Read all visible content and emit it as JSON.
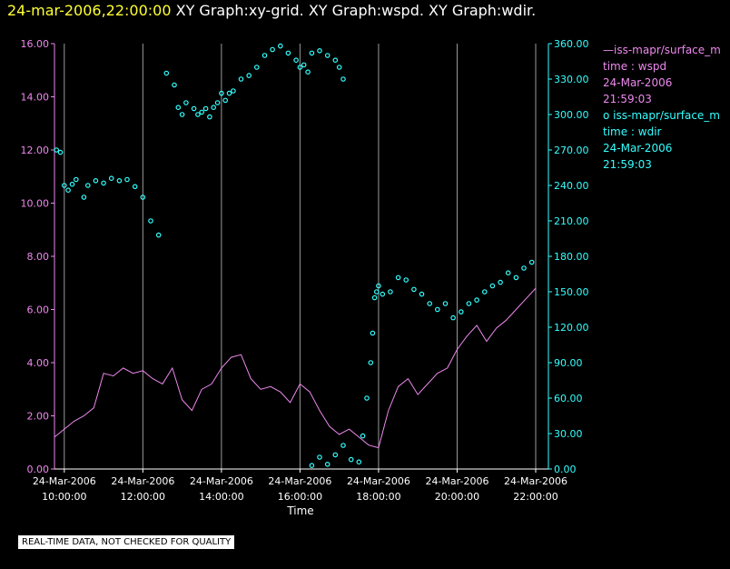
{
  "header": {
    "date_time": "24-mar-2006,22:00:00",
    "graphs": "XY Graph:xy-grid.  XY Graph:wspd.  XY Graph:wdir."
  },
  "legend": {
    "wspd": {
      "series": "iss-mapr/surface_m",
      "var": "time : wspd",
      "date": "24-Mar-2006",
      "time": "21:59:03"
    },
    "wdir": {
      "series": "iss-mapr/surface_m",
      "var": "time : wdir",
      "date": "24-Mar-2006",
      "time": "21:59:03"
    }
  },
  "notice": "REAL-TIME DATA, NOT CHECKED FOR QUALITY",
  "colors": {
    "wspd": "#ee88ee",
    "wdir": "#33ffff",
    "grid": "#9a9a9a",
    "axis": "#ffffff"
  },
  "chart_data": {
    "type": "line",
    "xlabel": "Time",
    "x_range_hours": [
      9.75,
      22.0
    ],
    "x_ticks": [
      {
        "hour": 10,
        "date": "24-Mar-2006",
        "time": "10:00:00"
      },
      {
        "hour": 12,
        "date": "24-Mar-2006",
        "time": "12:00:00"
      },
      {
        "hour": 14,
        "date": "24-Mar-2006",
        "time": "14:00:00"
      },
      {
        "hour": 16,
        "date": "24-Mar-2006",
        "time": "16:00:00"
      },
      {
        "hour": 18,
        "date": "24-Mar-2006",
        "time": "18:00:00"
      },
      {
        "hour": 20,
        "date": "24-Mar-2006",
        "time": "20:00:00"
      },
      {
        "hour": 22,
        "date": "24-Mar-2006",
        "time": "22:00:00"
      }
    ],
    "y_left": {
      "range": [
        0,
        16
      ],
      "ticks": [
        "0.00",
        "2.00",
        "4.00",
        "6.00",
        "8.00",
        "10.00",
        "12.00",
        "14.00",
        "16.00"
      ]
    },
    "y_right": {
      "range": [
        0,
        360
      ],
      "ticks": [
        "0.00",
        "30.00",
        "60.00",
        "90.00",
        "120.00",
        "150.00",
        "180.00",
        "210.00",
        "240.00",
        "270.00",
        "300.00",
        "330.00",
        "360.00"
      ]
    },
    "grid": true,
    "series": [
      {
        "name": "iss-mapr/surface_m : wspd",
        "axis": "left",
        "style": "line",
        "x": [
          9.75,
          10.0,
          10.25,
          10.5,
          10.75,
          11.0,
          11.25,
          11.5,
          11.75,
          12.0,
          12.25,
          12.5,
          12.75,
          13.0,
          13.25,
          13.5,
          13.75,
          14.0,
          14.25,
          14.5,
          14.75,
          15.0,
          15.25,
          15.5,
          15.75,
          16.0,
          16.25,
          16.5,
          16.75,
          17.0,
          17.25,
          17.5,
          17.75,
          18.0,
          18.25,
          18.5,
          18.75,
          19.0,
          19.25,
          19.5,
          19.75,
          20.0,
          20.25,
          20.5,
          20.75,
          21.0,
          21.25,
          21.5,
          21.75,
          22.0
        ],
        "y": [
          1.2,
          1.5,
          1.8,
          2.0,
          2.3,
          3.6,
          3.5,
          3.8,
          3.6,
          3.7,
          3.4,
          3.2,
          3.8,
          2.6,
          2.2,
          3.0,
          3.2,
          3.8,
          4.2,
          4.3,
          3.4,
          3.0,
          3.1,
          2.9,
          2.5,
          3.2,
          2.9,
          2.2,
          1.6,
          1.3,
          1.5,
          1.2,
          0.9,
          0.8,
          2.2,
          3.1,
          3.4,
          2.8,
          3.2,
          3.6,
          3.8,
          4.5,
          5.0,
          5.4,
          4.8,
          5.3,
          5.6,
          6.0,
          6.4,
          6.8
        ]
      },
      {
        "name": "iss-mapr/surface_m : wdir",
        "axis": "right",
        "style": "points",
        "x": [
          9.8,
          9.9,
          10.0,
          10.1,
          10.2,
          10.3,
          10.5,
          10.6,
          10.8,
          11.0,
          11.2,
          11.4,
          11.6,
          11.8,
          12.0,
          12.2,
          12.4,
          12.6,
          12.8,
          12.9,
          13.0,
          13.1,
          13.3,
          13.4,
          13.5,
          13.6,
          13.7,
          13.8,
          13.9,
          14.0,
          14.1,
          14.2,
          14.3,
          14.5,
          14.7,
          14.9,
          15.1,
          15.3,
          15.5,
          15.7,
          15.9,
          16.0,
          16.1,
          16.2,
          16.3,
          16.5,
          16.7,
          16.9,
          17.0,
          17.1,
          16.3,
          16.5,
          16.7,
          16.9,
          17.1,
          17.3,
          17.5,
          17.6,
          17.7,
          17.8,
          17.85,
          17.9,
          17.95,
          18.0,
          18.1,
          18.3,
          18.5,
          18.7,
          18.9,
          19.1,
          19.3,
          19.5,
          19.7,
          19.9,
          20.1,
          20.3,
          20.5,
          20.7,
          20.9,
          21.1,
          21.3,
          21.5,
          21.7,
          21.9
        ],
        "y": [
          270,
          268,
          240,
          236,
          241,
          245,
          230,
          240,
          244,
          242,
          246,
          244,
          245,
          239,
          230,
          210,
          198,
          335,
          325,
          306,
          300,
          310,
          305,
          300,
          302,
          305,
          298,
          306,
          310,
          318,
          312,
          318,
          320,
          330,
          333,
          340,
          350,
          355,
          358,
          352,
          346,
          340,
          342,
          336,
          352,
          354,
          350,
          346,
          340,
          330,
          3,
          10,
          4,
          12,
          20,
          8,
          6,
          28,
          60,
          90,
          115,
          145,
          150,
          155,
          148,
          150,
          162,
          160,
          152,
          148,
          140,
          135,
          140,
          128,
          133,
          140,
          143,
          150,
          155,
          158,
          166,
          162,
          170,
          175
        ]
      }
    ]
  }
}
